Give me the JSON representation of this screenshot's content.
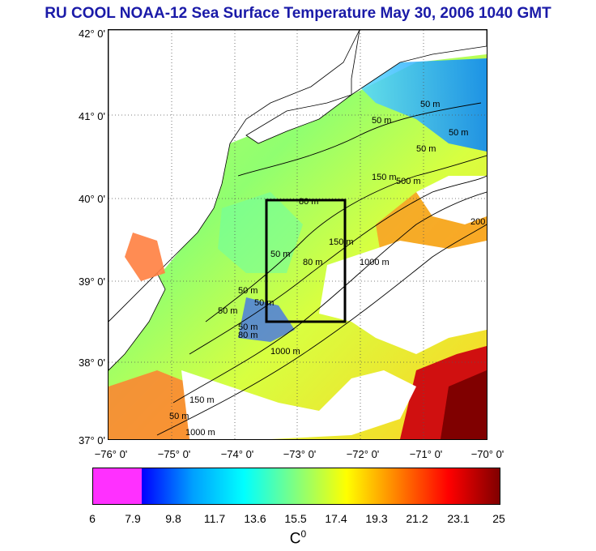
{
  "title": "RU COOL  NOAA-12 Sea Surface Temperature May 30, 2006 1040 GMT",
  "map": {
    "lat_labels": [
      "42° 0'",
      "41° 0'",
      "40° 0'",
      "39° 0'",
      "38° 0'",
      "37° 0'"
    ],
    "lon_labels": [
      "−76° 0'",
      "−75° 0'",
      "−74° 0'",
      "−73° 0'",
      "−72° 0'",
      "−71° 0'",
      "−70° 0'"
    ],
    "contour_labels": [
      "50 m",
      "50 m",
      "50 m",
      "80 m",
      "150 m",
      "500 m",
      "50 m",
      "80 m",
      "150 m",
      "1000 m",
      "50 m",
      "50 m",
      "50 m",
      "80 m",
      "1000 m",
      "150 m",
      "50 m",
      "1000 m",
      "50 m",
      "50 m",
      "200"
    ],
    "study_box": {
      "lon_min": -73.5,
      "lon_max": -72.3,
      "lat_min": 38.5,
      "lat_max": 40.0
    },
    "lon_range": [
      -76,
      -70
    ],
    "lat_range": [
      37,
      42
    ]
  },
  "colorbar": {
    "ticks": [
      "6",
      "7.9",
      "9.8",
      "11.7",
      "13.6",
      "15.5",
      "17.4",
      "19.3",
      "21.2",
      "23.1",
      "25"
    ],
    "units_base": "C",
    "units_sup": "0",
    "colors": [
      "#ff30ff",
      "#0000ff",
      "#00a0ff",
      "#00ffff",
      "#80ff80",
      "#ffff00",
      "#ff8000",
      "#ff0000",
      "#800000"
    ]
  }
}
